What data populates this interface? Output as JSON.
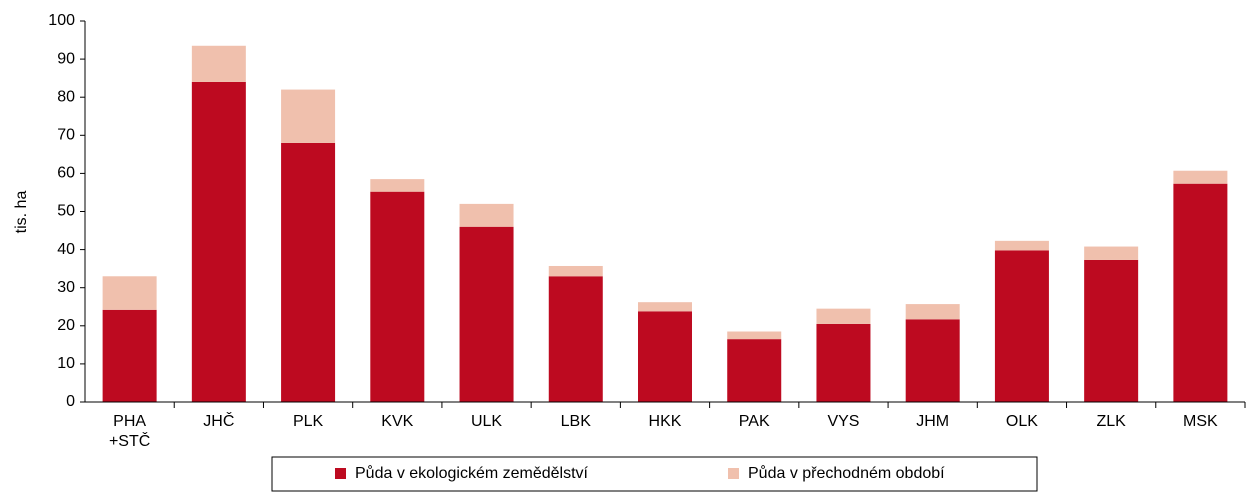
{
  "chart_data": {
    "type": "stacked_bar",
    "y_label": "tis. ha",
    "categories": [
      "PHA\n+STČ",
      "JHČ",
      "PLK",
      "KVK",
      "ULK",
      "LBK",
      "HKK",
      "PAK",
      "VYS",
      "JHM",
      "OLK",
      "ZLK",
      "MSK"
    ],
    "series": [
      {
        "name": "Půda v ekologickém zemědělství",
        "color": "#bd0a20",
        "values": [
          24.2,
          84,
          68,
          55.2,
          46,
          33,
          23.8,
          16.5,
          20.5,
          21.7,
          39.8,
          37.3,
          57.3
        ]
      },
      {
        "name": "Půda v přechodném období",
        "color": "#f0c0ad",
        "values": [
          8.8,
          9.5,
          14,
          3.3,
          6,
          2.7,
          2.4,
          2,
          4,
          4,
          2.5,
          3.5,
          3.4
        ]
      }
    ],
    "ylim": [
      0,
      100
    ],
    "yticks": [
      0,
      10,
      20,
      30,
      40,
      50,
      60,
      70,
      80,
      90,
      100
    ],
    "legend": "bottom"
  }
}
